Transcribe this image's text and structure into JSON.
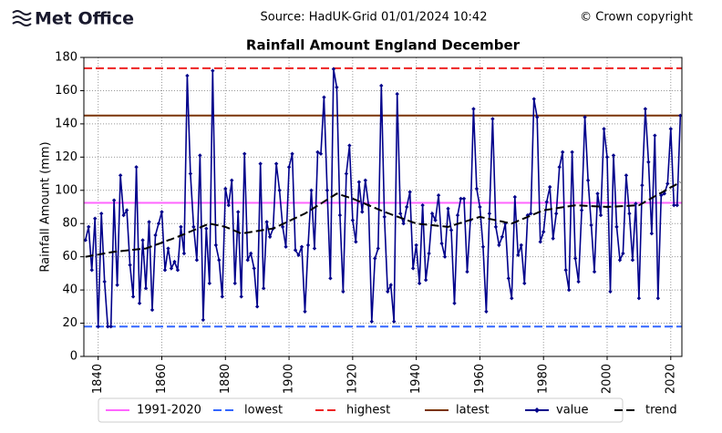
{
  "header": {
    "logo": "Met Office",
    "source": "Source: HadUK-Grid 01/01/2024 10:42",
    "copyright": "© Crown copyright"
  },
  "chart_data": {
    "type": "line",
    "title": "Rainfall Amount England December",
    "ylabel": "Rainfall Amount (mm)",
    "x": [
      1836,
      1837,
      1838,
      1839,
      1840,
      1841,
      1842,
      1843,
      1844,
      1845,
      1846,
      1847,
      1848,
      1849,
      1850,
      1851,
      1852,
      1853,
      1854,
      1855,
      1856,
      1857,
      1858,
      1859,
      1860,
      1861,
      1862,
      1863,
      1864,
      1865,
      1866,
      1867,
      1868,
      1869,
      1870,
      1871,
      1872,
      1873,
      1874,
      1875,
      1876,
      1877,
      1878,
      1879,
      1880,
      1881,
      1882,
      1883,
      1884,
      1885,
      1886,
      1887,
      1888,
      1889,
      1890,
      1891,
      1892,
      1893,
      1894,
      1895,
      1896,
      1897,
      1898,
      1899,
      1900,
      1901,
      1902,
      1903,
      1904,
      1905,
      1906,
      1907,
      1908,
      1909,
      1910,
      1911,
      1912,
      1913,
      1914,
      1915,
      1916,
      1917,
      1918,
      1919,
      1920,
      1921,
      1922,
      1923,
      1924,
      1925,
      1926,
      1927,
      1928,
      1929,
      1930,
      1931,
      1932,
      1933,
      1934,
      1935,
      1936,
      1937,
      1938,
      1939,
      1940,
      1941,
      1942,
      1943,
      1944,
      1945,
      1946,
      1947,
      1948,
      1949,
      1950,
      1951,
      1952,
      1953,
      1954,
      1955,
      1956,
      1957,
      1958,
      1959,
      1960,
      1961,
      1962,
      1963,
      1964,
      1965,
      1966,
      1967,
      1968,
      1969,
      1970,
      1971,
      1972,
      1973,
      1974,
      1975,
      1976,
      1977,
      1978,
      1979,
      1980,
      1981,
      1982,
      1983,
      1984,
      1985,
      1986,
      1987,
      1988,
      1989,
      1990,
      1991,
      1992,
      1993,
      1994,
      1995,
      1996,
      1997,
      1998,
      1999,
      2000,
      2001,
      2002,
      2003,
      2004,
      2005,
      2006,
      2007,
      2008,
      2009,
      2010,
      2011,
      2012,
      2013,
      2014,
      2015,
      2016,
      2017,
      2018,
      2019,
      2020,
      2021,
      2022,
      2023
    ],
    "series": [
      {
        "name": "value",
        "color": "#00008b",
        "marker": true,
        "values": [
          70,
          78,
          52,
          83,
          18,
          86,
          45,
          18,
          18,
          94,
          43,
          109,
          85,
          88,
          55,
          36,
          114,
          32,
          70,
          41,
          81,
          28,
          73,
          80,
          87,
          52,
          65,
          53,
          57,
          52,
          78,
          62,
          169,
          110,
          78,
          58,
          121,
          22,
          77,
          44,
          172,
          67,
          58,
          36,
          101,
          91,
          106,
          44,
          87,
          36,
          122,
          58,
          62,
          53,
          30,
          116,
          41,
          81,
          72,
          77,
          116,
          100,
          78,
          66,
          114,
          122,
          64,
          61,
          66,
          27,
          67,
          100,
          65,
          123,
          122,
          156,
          100,
          47,
          173,
          162,
          85,
          39,
          110,
          127,
          82,
          69,
          105,
          87,
          106,
          91,
          21,
          59,
          65,
          163,
          84,
          39,
          43,
          21,
          158,
          86,
          80,
          90,
          99,
          53,
          67,
          44,
          91,
          46,
          62,
          86,
          82,
          97,
          68,
          60,
          89,
          76,
          32,
          85,
          95,
          95,
          51,
          82,
          149,
          101,
          90,
          66,
          27,
          86,
          143,
          78,
          67,
          72,
          80,
          47,
          35,
          96,
          61,
          67,
          44,
          85,
          86,
          155,
          144,
          69,
          75,
          93,
          102,
          71,
          86,
          114,
          123,
          52,
          40,
          123,
          59,
          45,
          88,
          144,
          106,
          79,
          51,
          98,
          85,
          137,
          120,
          39,
          121,
          78,
          58,
          62,
          109,
          86,
          58,
          92,
          35,
          103,
          149,
          117,
          74,
          133,
          35,
          97,
          98,
          104,
          137,
          91,
          91,
          145
        ]
      },
      {
        "name": "trend",
        "color": "#000000",
        "dashed": true,
        "values": [
          60,
          60.3,
          60.7,
          61,
          61.3,
          61.7,
          62,
          62.3,
          62.7,
          63,
          63.2,
          63.4,
          63.6,
          63.8,
          64,
          64.2,
          64.4,
          64.6,
          64.8,
          65,
          65.7,
          66.4,
          67.1,
          67.8,
          68.5,
          69.2,
          69.9,
          70.6,
          71.3,
          72,
          72.8,
          73.6,
          74.4,
          75.2,
          76,
          76.8,
          77.6,
          78.4,
          79.2,
          80,
          79.6,
          79.2,
          78.8,
          78.4,
          78,
          77.2,
          76.4,
          75.6,
          74.8,
          74,
          74.3,
          74.6,
          74.9,
          75.2,
          75.5,
          75.8,
          76.1,
          76.4,
          76.7,
          77,
          77.9,
          78.8,
          79.7,
          80.6,
          81.5,
          82.4,
          83.3,
          84.2,
          85.1,
          86,
          87.2,
          88.4,
          89.6,
          90.8,
          92,
          93.2,
          94.4,
          95.6,
          96.8,
          98,
          97.4,
          96.8,
          96.2,
          95.6,
          95,
          94.2,
          93.4,
          92.6,
          91.8,
          91,
          90.2,
          89.4,
          88.6,
          87.8,
          87,
          86.3,
          85.6,
          84.9,
          84.2,
          83.5,
          82.8,
          82.1,
          81.4,
          80.7,
          80,
          79.8,
          79.6,
          79.4,
          79.2,
          79,
          78.8,
          78.6,
          78.4,
          78.2,
          78,
          78.6,
          79.2,
          79.8,
          80.4,
          81,
          81.6,
          82.2,
          82.8,
          83.4,
          84,
          83.6,
          83.2,
          82.8,
          82.4,
          82,
          81.6,
          81.2,
          80.8,
          80.4,
          80,
          80.8,
          81.6,
          82.4,
          83.2,
          84,
          84.8,
          85.6,
          86.4,
          87.2,
          88,
          88.3,
          88.6,
          88.9,
          89.2,
          89.5,
          89.8,
          90.1,
          90.4,
          90.7,
          91,
          90.9,
          90.8,
          90.7,
          90.6,
          90.5,
          90.4,
          90.3,
          90.2,
          90.1,
          90,
          90.1,
          90.2,
          90.3,
          90.4,
          90.5,
          90.6,
          90.7,
          90.8,
          90.9,
          91,
          92.1,
          93.2,
          94.2,
          95.3,
          96.4,
          97.5,
          98.5,
          99.6,
          100.7,
          101.8,
          102.8,
          103.9,
          105
        ]
      }
    ],
    "reference_lines": [
      {
        "name": "1991-2020",
        "color": "#ff66ff",
        "dashed": false,
        "value": 92.5
      },
      {
        "name": "lowest",
        "color": "#3366ff",
        "dashed": true,
        "value": 18
      },
      {
        "name": "highest",
        "color": "#ee2222",
        "dashed": true,
        "value": 173.5
      },
      {
        "name": "latest",
        "color": "#7a3300",
        "dashed": false,
        "value": 145
      }
    ],
    "legend_order": [
      "1991-2020",
      "lowest",
      "highest",
      "latest",
      "value",
      "trend"
    ],
    "xlim": [
      1835.5,
      2023.5
    ],
    "xticks": [
      1840,
      1860,
      1880,
      1900,
      1920,
      1940,
      1960,
      1980,
      2000,
      2020
    ],
    "ylim": [
      0,
      180
    ],
    "yticks": [
      0,
      20,
      40,
      60,
      80,
      100,
      120,
      140,
      160,
      180
    ],
    "grid": true,
    "legend": "bottom"
  }
}
